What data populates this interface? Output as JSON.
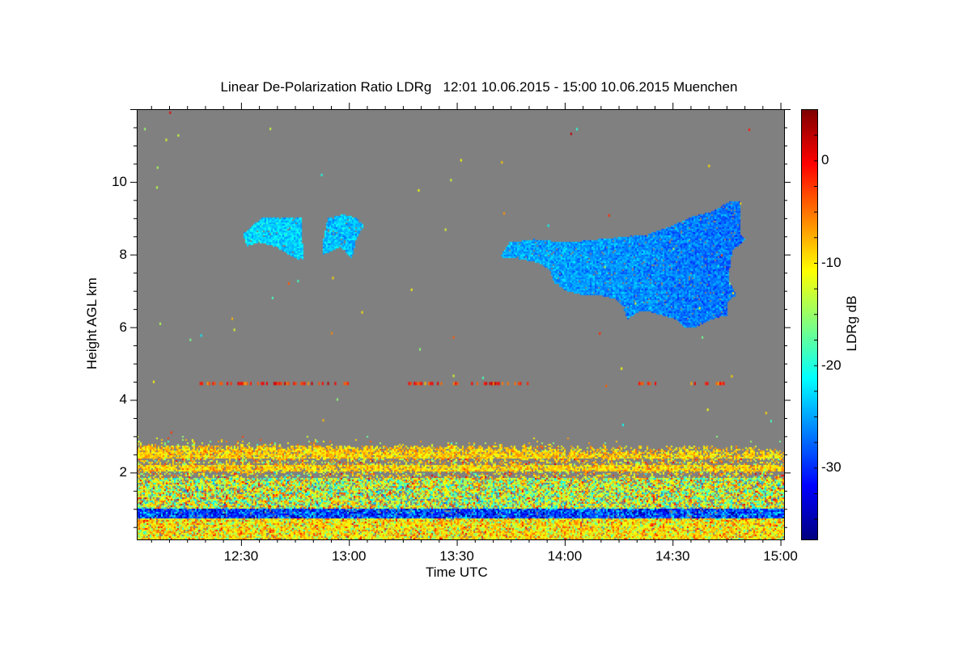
{
  "chart_data": {
    "type": "heatmap",
    "title": "Linear De-Polarization Ratio LDRg   12:01 10.06.2015 - 15:00 10.06.2015 Muenchen",
    "xlabel": "Time UTC",
    "ylabel": "Height AGL km",
    "colorbar_label": "LDRg dB",
    "x_range_minutes_after_12": [
      1,
      181
    ],
    "x_ticks": [
      {
        "min": 30,
        "label": "12:30"
      },
      {
        "min": 60,
        "label": "13:00"
      },
      {
        "min": 90,
        "label": "13:30"
      },
      {
        "min": 120,
        "label": "14:00"
      },
      {
        "min": 150,
        "label": "14:30"
      },
      {
        "min": 180,
        "label": "15:00"
      }
    ],
    "y_range_km": [
      0.16,
      12
    ],
    "y_ticks": [
      {
        "value": 2,
        "label": "2"
      },
      {
        "value": 4,
        "label": "4"
      },
      {
        "value": 6,
        "label": "6"
      },
      {
        "value": 8,
        "label": "8"
      },
      {
        "value": 10,
        "label": "10"
      }
    ],
    "color_range_db": [
      -37,
      5
    ],
    "colorbar_ticks": [
      {
        "value": 0,
        "label": "0"
      },
      {
        "value": -10,
        "label": "-10"
      },
      {
        "value": -20,
        "label": "-20"
      },
      {
        "value": -30,
        "label": "-30"
      }
    ],
    "colors": {
      "background": "#808080",
      "colormap": [
        "#00007f",
        "#0000ff",
        "#0080ff",
        "#00ffff",
        "#80ff80",
        "#ffff00",
        "#ff8000",
        "#ff0000",
        "#7f0000"
      ]
    },
    "boundary_layer": {
      "top_km": 2.9,
      "bands": [
        {
          "h0": 0.16,
          "h1": 0.75,
          "mean_db": -10,
          "spread_db": 5,
          "fill": 0.97
        },
        {
          "h0": 0.75,
          "h1": 1.0,
          "mean_db": -29,
          "spread_db": 5,
          "fill": 0.95
        },
        {
          "h0": 1.0,
          "h1": 1.85,
          "mean_db": -13,
          "spread_db": 7,
          "fill": 0.85
        },
        {
          "h0": 1.85,
          "h1": 2.02,
          "mean_db": -10,
          "spread_db": 6,
          "fill": 0.35
        },
        {
          "h0": 2.02,
          "h1": 2.22,
          "mean_db": -9,
          "spread_db": 3,
          "fill": 0.9
        },
        {
          "h0": 2.22,
          "h1": 2.4,
          "mean_db": -9,
          "spread_db": 5,
          "fill": 0.4
        },
        {
          "h0": 2.4,
          "h1": 2.72,
          "mean_db": -9,
          "spread_db": 3,
          "fill": 0.9
        },
        {
          "h0": 2.72,
          "h1": 3.0,
          "mean_db": -11,
          "spread_db": 5,
          "fill": 0.35
        }
      ]
    },
    "clouds": [
      {
        "name": "cirrus-1",
        "mean_db": -27,
        "spread_db": 2,
        "outline": [
          [
            30.5,
            8.56
          ],
          [
            36.1,
            9.04
          ],
          [
            40.6,
            9.0
          ],
          [
            46.7,
            9.04
          ],
          [
            47.4,
            7.84
          ],
          [
            45.1,
            7.89
          ],
          [
            39.5,
            8.22
          ],
          [
            35.0,
            8.33
          ],
          [
            31.6,
            8.22
          ]
        ]
      },
      {
        "name": "cirrus-2",
        "mean_db": -27,
        "spread_db": 2,
        "outline": [
          [
            52.5,
            8.22
          ],
          [
            54.1,
            9.0
          ],
          [
            58.6,
            9.1
          ],
          [
            62.0,
            9.0
          ],
          [
            64.2,
            8.8
          ],
          [
            62.0,
            8.4
          ],
          [
            60.9,
            7.9
          ],
          [
            57.5,
            8.2
          ],
          [
            53.0,
            8.0
          ]
        ]
      },
      {
        "name": "cirrus-3",
        "mean_db": -26,
        "spread_db": 2,
        "outline": [
          [
            102.0,
            7.93
          ],
          [
            104.7,
            8.33
          ],
          [
            111.5,
            8.42
          ],
          [
            120.5,
            8.33
          ],
          [
            129.5,
            8.42
          ],
          [
            138.5,
            8.51
          ],
          [
            143.0,
            8.56
          ],
          [
            149.7,
            8.78
          ],
          [
            155.4,
            9.04
          ],
          [
            161.0,
            9.18
          ],
          [
            166.6,
            9.49
          ],
          [
            168.9,
            9.44
          ],
          [
            168.9,
            8.56
          ],
          [
            170.4,
            8.42
          ],
          [
            166.6,
            8.11
          ],
          [
            165.5,
            7.33
          ],
          [
            167.7,
            6.89
          ],
          [
            165.0,
            6.67
          ],
          [
            165.5,
            6.33
          ],
          [
            161.0,
            6.22
          ],
          [
            156.5,
            6.0
          ],
          [
            153.1,
            6.0
          ],
          [
            150.9,
            6.22
          ],
          [
            143.0,
            6.44
          ],
          [
            140.7,
            6.44
          ],
          [
            137.4,
            6.22
          ],
          [
            136.2,
            6.56
          ],
          [
            134.0,
            6.78
          ],
          [
            129.5,
            6.89
          ],
          [
            125.0,
            6.89
          ],
          [
            120.5,
            7.0
          ],
          [
            117.1,
            7.22
          ],
          [
            116.0,
            7.56
          ],
          [
            112.6,
            7.78
          ],
          [
            107.0,
            7.89
          ]
        ]
      }
    ],
    "aerosol_line": {
      "height_km": 4.45,
      "mean_db": -2,
      "segments_min": [
        [
          17,
          60
        ],
        [
          75,
          110
        ],
        [
          140,
          146
        ],
        [
          155,
          165
        ]
      ]
    }
  }
}
